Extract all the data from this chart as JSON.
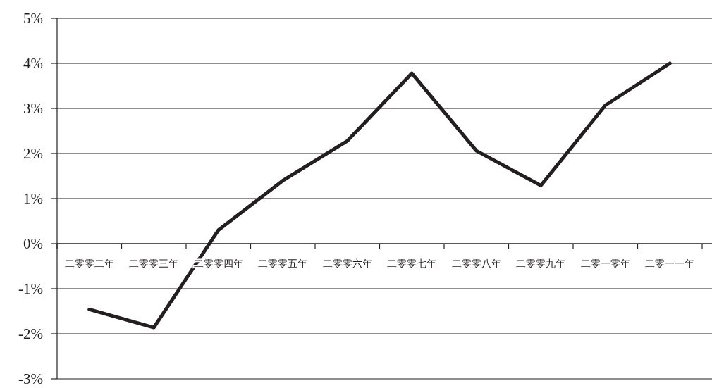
{
  "chart_data": {
    "type": "line",
    "categories": [
      "二零零二年",
      "二零零三年",
      "二零零四年",
      "二零零五年",
      "二零零六年",
      "二零零七年",
      "二零零八年",
      "二零零九年",
      "二零一零年",
      "二零一一年"
    ],
    "series": [
      {
        "color": "#231f20",
        "values": [
          -1.46,
          -1.86,
          0.3,
          1.4,
          2.28,
          3.78,
          2.06,
          1.29,
          3.07,
          4.0
        ]
      }
    ],
    "ylim": [
      -3,
      5
    ],
    "yticks": [
      {
        "value": -3,
        "label": "-3%"
      },
      {
        "value": -2,
        "label": "-2%"
      },
      {
        "value": -1,
        "label": "-1%"
      },
      {
        "value": 0,
        "label": "0%"
      },
      {
        "value": 1,
        "label": "1%"
      },
      {
        "value": 2,
        "label": "2%"
      },
      {
        "value": 3,
        "label": "3%"
      },
      {
        "value": 4,
        "label": "4%"
      },
      {
        "value": 5,
        "label": "5%"
      }
    ],
    "grid": "y",
    "marker": "none",
    "line_style": "solid"
  }
}
